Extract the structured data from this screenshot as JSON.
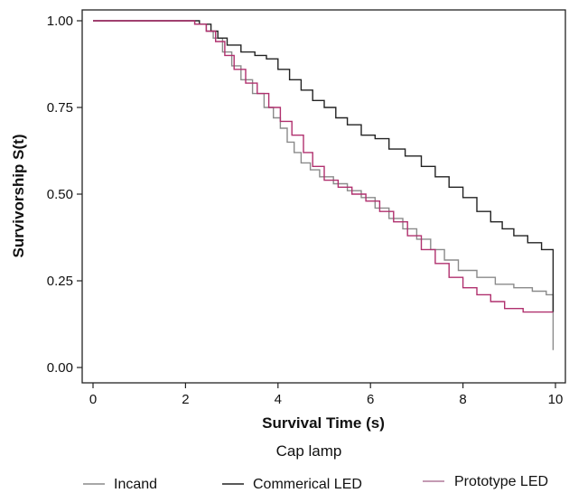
{
  "chart_data": {
    "type": "line",
    "title": "",
    "xlabel": "Survival Time (s)",
    "ylabel": "Survivorship S(t)",
    "xlim": [
      0,
      10
    ],
    "ylim": [
      0,
      1
    ],
    "x_ticks": [
      "0",
      "2",
      "4",
      "6",
      "8",
      "10"
    ],
    "y_ticks": [
      "0.00",
      "0.25",
      "0.50",
      "0.75",
      "1.00"
    ],
    "grid": false,
    "legend_title": "Cap lamp",
    "legend_position": "bottom",
    "series": [
      {
        "name": "Incand",
        "color": "#8a8a8a",
        "points": [
          [
            0,
            1.0
          ],
          [
            1.9,
            1.0
          ],
          [
            2.2,
            0.99
          ],
          [
            2.45,
            0.97
          ],
          [
            2.6,
            0.95
          ],
          [
            2.8,
            0.91
          ],
          [
            3.0,
            0.87
          ],
          [
            3.2,
            0.83
          ],
          [
            3.45,
            0.79
          ],
          [
            3.7,
            0.75
          ],
          [
            3.9,
            0.72
          ],
          [
            4.05,
            0.69
          ],
          [
            4.2,
            0.65
          ],
          [
            4.35,
            0.62
          ],
          [
            4.5,
            0.59
          ],
          [
            4.7,
            0.57
          ],
          [
            4.9,
            0.55
          ],
          [
            5.2,
            0.53
          ],
          [
            5.5,
            0.51
          ],
          [
            5.8,
            0.49
          ],
          [
            6.1,
            0.46
          ],
          [
            6.4,
            0.43
          ],
          [
            6.7,
            0.4
          ],
          [
            7.0,
            0.37
          ],
          [
            7.3,
            0.34
          ],
          [
            7.6,
            0.31
          ],
          [
            7.9,
            0.28
          ],
          [
            8.3,
            0.26
          ],
          [
            8.7,
            0.24
          ],
          [
            9.1,
            0.23
          ],
          [
            9.5,
            0.22
          ],
          [
            9.8,
            0.21
          ],
          [
            9.95,
            0.2
          ],
          [
            9.95,
            0.05
          ]
        ]
      },
      {
        "name": "Commerical LED",
        "color": "#222222",
        "points": [
          [
            0,
            1.0
          ],
          [
            2.0,
            1.0
          ],
          [
            2.3,
            0.99
          ],
          [
            2.55,
            0.97
          ],
          [
            2.7,
            0.95
          ],
          [
            2.9,
            0.93
          ],
          [
            3.2,
            0.91
          ],
          [
            3.5,
            0.9
          ],
          [
            3.75,
            0.89
          ],
          [
            4.0,
            0.86
          ],
          [
            4.25,
            0.83
          ],
          [
            4.5,
            0.8
          ],
          [
            4.75,
            0.77
          ],
          [
            5.0,
            0.75
          ],
          [
            5.25,
            0.72
          ],
          [
            5.5,
            0.7
          ],
          [
            5.8,
            0.67
          ],
          [
            6.1,
            0.66
          ],
          [
            6.4,
            0.63
          ],
          [
            6.75,
            0.61
          ],
          [
            7.1,
            0.58
          ],
          [
            7.4,
            0.55
          ],
          [
            7.7,
            0.52
          ],
          [
            8.0,
            0.49
          ],
          [
            8.3,
            0.45
          ],
          [
            8.6,
            0.42
          ],
          [
            8.85,
            0.4
          ],
          [
            9.1,
            0.38
          ],
          [
            9.4,
            0.36
          ],
          [
            9.7,
            0.34
          ],
          [
            9.95,
            0.32
          ],
          [
            9.95,
            0.16
          ]
        ]
      },
      {
        "name": "Prototype LED",
        "color": "#b0306e",
        "points": [
          [
            0,
            1.0
          ],
          [
            1.85,
            1.0
          ],
          [
            2.2,
            0.99
          ],
          [
            2.45,
            0.97
          ],
          [
            2.65,
            0.94
          ],
          [
            2.85,
            0.9
          ],
          [
            3.05,
            0.86
          ],
          [
            3.3,
            0.82
          ],
          [
            3.55,
            0.79
          ],
          [
            3.8,
            0.75
          ],
          [
            4.05,
            0.71
          ],
          [
            4.3,
            0.67
          ],
          [
            4.55,
            0.62
          ],
          [
            4.75,
            0.58
          ],
          [
            5.0,
            0.54
          ],
          [
            5.3,
            0.52
          ],
          [
            5.6,
            0.5
          ],
          [
            5.9,
            0.48
          ],
          [
            6.2,
            0.45
          ],
          [
            6.5,
            0.42
          ],
          [
            6.8,
            0.38
          ],
          [
            7.1,
            0.34
          ],
          [
            7.4,
            0.3
          ],
          [
            7.7,
            0.26
          ],
          [
            8.0,
            0.23
          ],
          [
            8.3,
            0.21
          ],
          [
            8.6,
            0.19
          ],
          [
            8.9,
            0.17
          ],
          [
            9.3,
            0.16
          ],
          [
            9.6,
            0.16
          ],
          [
            9.95,
            0.16
          ]
        ]
      }
    ]
  }
}
